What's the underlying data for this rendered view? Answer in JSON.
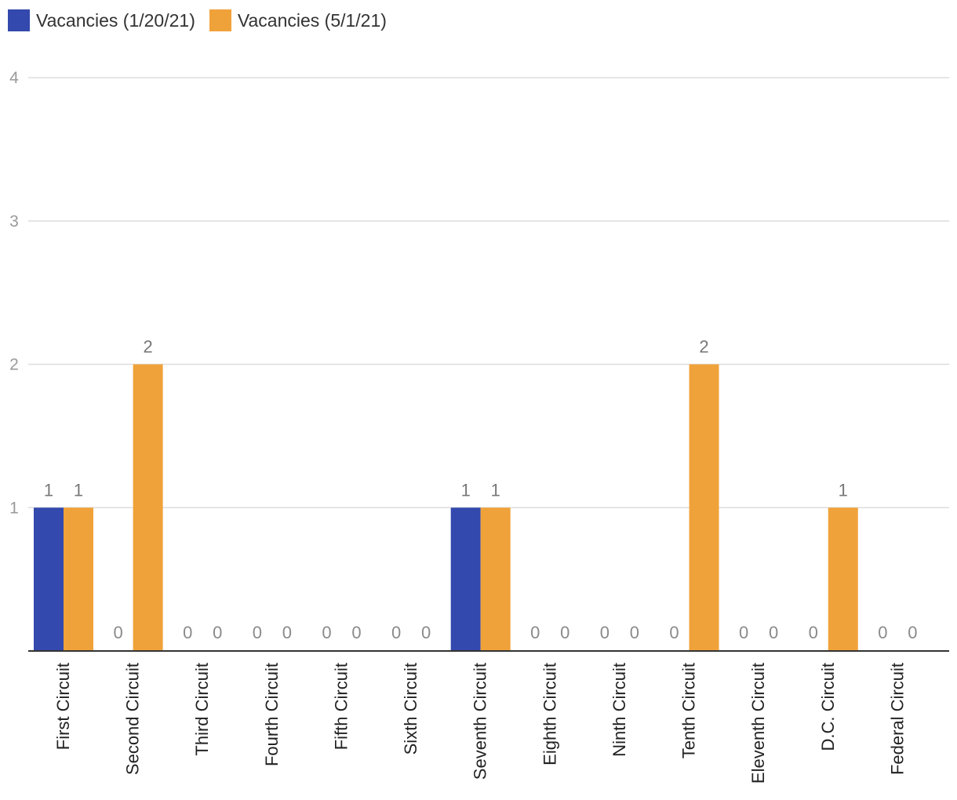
{
  "chart_data": {
    "type": "bar",
    "categories": [
      "First Circuit",
      "Second Circuit",
      "Third Circuit",
      "Fourth Circuit",
      "Fifth Circuit",
      "Sixth Circuit",
      "Seventh Circuit",
      "Eighth Circuit",
      "Ninth Circuit",
      "Tenth Circuit",
      "Eleventh Circuit",
      "D.C. Circuit",
      "Federal Circuit"
    ],
    "series": [
      {
        "name": "Vacancies (1/20/21)",
        "color": "#3349ad",
        "values": [
          1,
          0,
          0,
          0,
          0,
          0,
          1,
          0,
          0,
          0,
          0,
          0,
          0
        ]
      },
      {
        "name": "Vacancies (5/1/21)",
        "color": "#f0a23a",
        "values": [
          1,
          2,
          0,
          0,
          0,
          0,
          1,
          0,
          0,
          2,
          0,
          1,
          0
        ]
      }
    ],
    "yticks": [
      "1",
      "2",
      "3",
      "4"
    ],
    "ylim": [
      0,
      4
    ],
    "grid": true,
    "legend": "top-left",
    "data_labels": true
  }
}
